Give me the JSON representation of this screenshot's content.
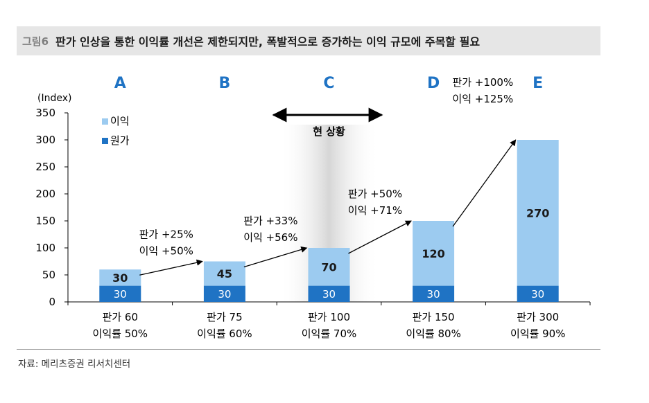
{
  "header": {
    "figure_label": "그림6",
    "title": "판가 인상을 통한 이익률 개선은 제한되지만, 폭발적으로 증가하는 이익 규모에 주목할 필요"
  },
  "chart_data": {
    "type": "bar",
    "stacked": true,
    "ylabel": "(Index)",
    "ylim": [
      0,
      350
    ],
    "yticks": [
      0,
      50,
      100,
      150,
      200,
      250,
      300,
      350
    ],
    "grid": false,
    "legend_position": "top-left",
    "scenario_labels": [
      "A",
      "B",
      "C",
      "D",
      "E"
    ],
    "categories": [
      [
        "판가 60",
        "이익률 50%"
      ],
      [
        "판가 75",
        "이익률 60%"
      ],
      [
        "판가 100",
        "이익률 70%"
      ],
      [
        "판가 150",
        "이익률 80%"
      ],
      [
        "판가 300",
        "이익률 90%"
      ]
    ],
    "series": [
      {
        "name": "원가",
        "values": [
          30,
          30,
          30,
          30,
          30
        ],
        "color": "#1f73c4"
      },
      {
        "name": "이익",
        "values": [
          30,
          45,
          70,
          120,
          270
        ],
        "color": "#9ccbf0"
      }
    ],
    "annotations": [
      {
        "from": 0,
        "to": 1,
        "lines": [
          "판가 +25%",
          "이익 +50%"
        ]
      },
      {
        "from": 1,
        "to": 2,
        "lines": [
          "판가 +33%",
          "이익 +56%"
        ]
      },
      {
        "from": 2,
        "to": 3,
        "lines": [
          "판가 +50%",
          "이익 +71%"
        ]
      },
      {
        "from": 3,
        "to": 4,
        "lines": [
          "판가 +100%",
          "이익 +125%"
        ]
      }
    ],
    "highlight": {
      "index": 2,
      "label": "현 상황"
    }
  },
  "colors": {
    "scenario_letter": "#1f73c4",
    "highlight_shade": "#d6d6d6"
  },
  "footer": {
    "source": "자료: 메리츠증권 리서치센터"
  }
}
